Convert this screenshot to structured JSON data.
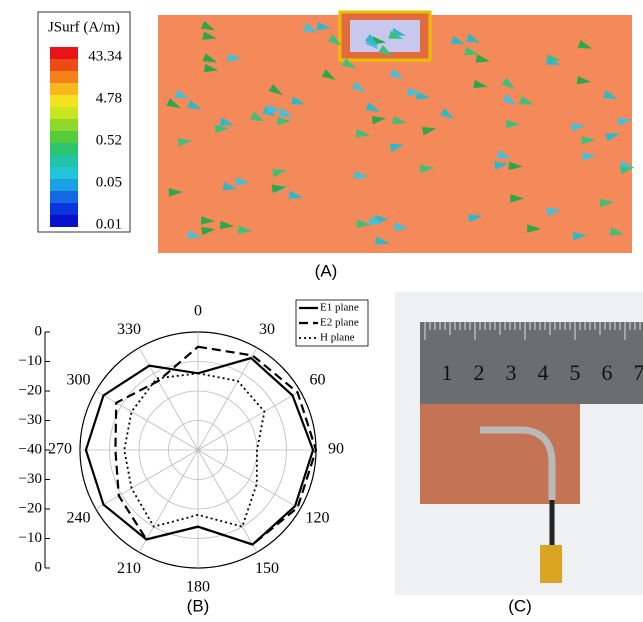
{
  "panel_a": {
    "legend_title": "JSurf (A/m)",
    "colorbar_labels": [
      "43.34",
      "4.78",
      "0.52",
      "0.05",
      "0.01"
    ],
    "caption": "(A)"
  },
  "chart_data": {
    "type": "polar",
    "caption": "(B)",
    "theta": [
      0,
      30,
      60,
      90,
      120,
      150,
      180,
      210,
      240,
      270,
      300,
      330
    ],
    "rlim": [
      -40,
      0
    ],
    "rticks": [
      0,
      {
        "value": -10,
        "label": "−10"
      },
      {
        "value": -20,
        "label": "−20"
      },
      {
        "value": -30,
        "label": "−30"
      },
      {
        "value": -40,
        "label": "−40"
      }
    ],
    "series": [
      {
        "name": "E1 plane",
        "color": "#000000",
        "dash": "solid",
        "values": [
          -14,
          -4,
          -3,
          -1,
          -2,
          -3,
          -14,
          -5,
          -3,
          -2,
          -3,
          -7
        ]
      },
      {
        "name": "E2 plane",
        "color": "#000000",
        "dash": "dashed",
        "values": [
          -5,
          -3,
          -1,
          0,
          -1,
          -3,
          -14,
          -5,
          -9,
          -12,
          -8,
          -13
        ]
      },
      {
        "name": "H plane",
        "color": "#000000",
        "dash": "dotted",
        "values": [
          -14,
          -13,
          -14,
          -20,
          -17,
          -10,
          -18,
          -10,
          -14,
          -15,
          -14,
          -12
        ]
      }
    ],
    "legend": "upper right",
    "grid": true
  },
  "panel_c": {
    "ruler_numbers": [
      "1",
      "2",
      "3",
      "4",
      "5",
      "6",
      "7"
    ],
    "caption": "(C)"
  }
}
